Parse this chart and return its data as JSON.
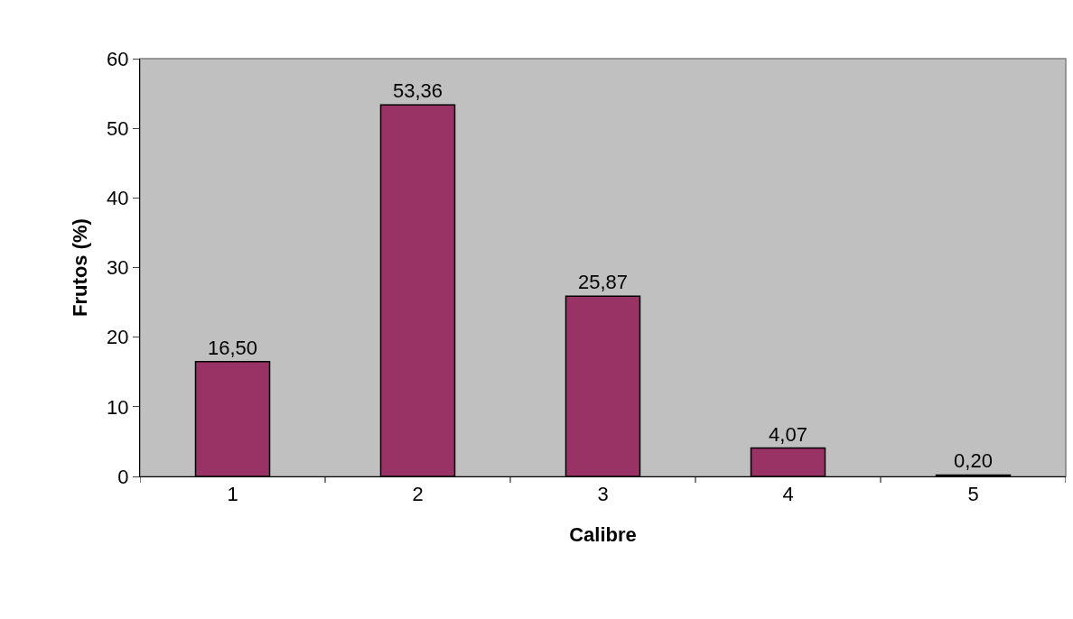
{
  "chart_data": {
    "type": "bar",
    "xlabel": "Calibre",
    "ylabel": "Frutos (%)",
    "categories": [
      "1",
      "2",
      "3",
      "4",
      "5"
    ],
    "values": [
      16.5,
      53.36,
      25.87,
      4.07,
      0.2
    ],
    "value_labels": [
      "16,50",
      "53,36",
      "25,87",
      "4,07",
      "0,20"
    ],
    "color": "#993366",
    "ylim": [
      0,
      60
    ],
    "yticks": [
      0,
      10,
      20,
      30,
      40,
      50,
      60
    ],
    "grid": false,
    "legend": false
  }
}
